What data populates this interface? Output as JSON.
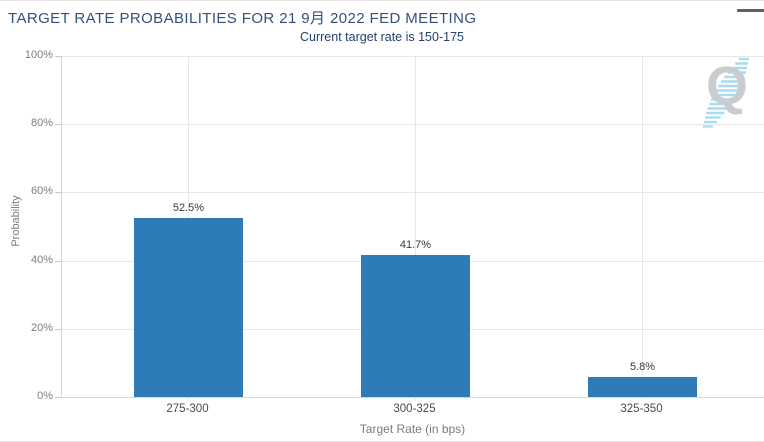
{
  "header": {
    "title": "TARGET RATE PROBABILITIES FOR 21 9月 2022 FED MEETING"
  },
  "subtitle": "Current target rate is 150-175",
  "watermark": {
    "letter": "Q"
  },
  "chart_data": {
    "type": "bar",
    "title": "TARGET RATE PROBABILITIES FOR 21 9月 2022 FED MEETING",
    "subtitle": "Current target rate is 150-175",
    "categories": [
      "275-300",
      "300-325",
      "325-350"
    ],
    "values": [
      52.5,
      41.7,
      5.8
    ],
    "value_labels": [
      "52.5%",
      "41.7%",
      "5.8%"
    ],
    "xlabel": "Target Rate (in bps)",
    "ylabel": "Probability",
    "ylim": [
      0,
      100
    ],
    "yticks": [
      0,
      20,
      40,
      60,
      80,
      100
    ],
    "ytick_labels": [
      "0%",
      "20%",
      "40%",
      "60%",
      "80%",
      "100%"
    ],
    "grid": true,
    "legend_position": "none",
    "bar_color": "#2d7cb8"
  },
  "colors": {
    "title": "#33517e",
    "subtitle": "#27406f",
    "bar": "#2d7cb8",
    "gridline": "#e7e7e7",
    "axis_line": "#d6d6d6",
    "ytick_text": "#7d7d7d",
    "xtick_text": "#4a4a4a",
    "value_label": "#3a3a3a",
    "axis_title": "#7c7c7c",
    "watermark_q": "#c9cdd0",
    "watermark_stripes": "#a8dcf0",
    "menu_icon": "#5f6062"
  }
}
